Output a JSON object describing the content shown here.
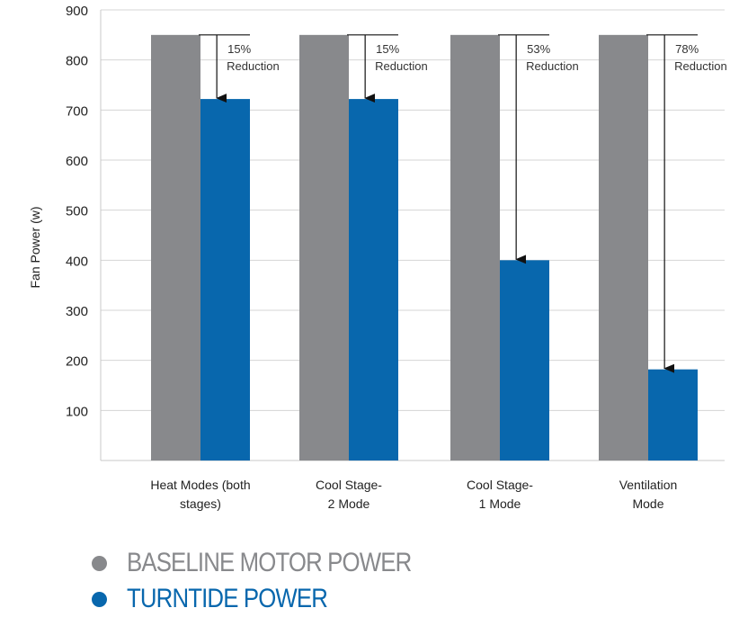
{
  "chart_data": {
    "type": "bar",
    "ylabel": "Fan Power (w)",
    "ylim": [
      0,
      900
    ],
    "yticks": [
      100,
      200,
      300,
      400,
      500,
      600,
      700,
      800,
      900
    ],
    "grid": true,
    "categories": [
      [
        "Heat Modes (both",
        "stages)"
      ],
      [
        "Cool Stage-",
        "2 Mode"
      ],
      [
        "Cool Stage-",
        "1 Mode"
      ],
      [
        "Ventilation",
        "Mode"
      ]
    ],
    "series": [
      {
        "name": "BASELINE MOTOR POWER",
        "color": "#88898c",
        "values": [
          850,
          850,
          850,
          850
        ]
      },
      {
        "name": "TURNTIDE POWER",
        "color": "#0867ad",
        "values": [
          722,
          722,
          400,
          182
        ]
      }
    ],
    "annotations": [
      {
        "percent": "15%",
        "text": "Reduction"
      },
      {
        "percent": "15%",
        "text": "Reduction"
      },
      {
        "percent": "53%",
        "text": "Reduction"
      },
      {
        "percent": "78%",
        "text": "Reduction"
      }
    ],
    "legend_position": "bottom-left"
  }
}
